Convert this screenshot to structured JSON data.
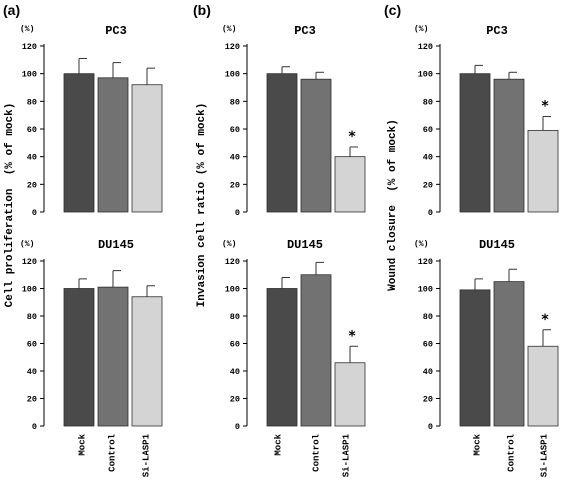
{
  "panels": [
    {
      "letter": "(a)",
      "ylabel": "Cell proliferation  (% of mock)",
      "charts": [
        {
          "title": "PC3",
          "unit": "(%)"
        },
        {
          "title": "DU145",
          "unit": "(%)"
        }
      ]
    },
    {
      "letter": "(b)",
      "ylabel": "Invasion cell ratio (% of mock)",
      "charts": [
        {
          "title": "PC3",
          "unit": "(%)"
        },
        {
          "title": "DU145",
          "unit": "(%)"
        }
      ]
    },
    {
      "letter": "(c)",
      "ylabel": "Wound closure  (% of mock)",
      "charts": [
        {
          "title": "PC3",
          "unit": "(%)"
        },
        {
          "title": "DU145",
          "unit": "(%)"
        }
      ]
    }
  ],
  "colors": {
    "Mock": "#4a4a4a",
    "Control": "#727272",
    "Si-LASP1": "#d4d4d4"
  },
  "chart_data": [
    {
      "panel": "(a)",
      "type": "bar",
      "title": "PC3",
      "ylabel": "Cell proliferation (% of mock)",
      "categories": [
        "Mock",
        "Control",
        "Si-LASP1"
      ],
      "values": [
        100,
        97,
        92
      ],
      "errors": [
        11,
        11,
        12
      ],
      "significant": [
        false,
        false,
        false
      ],
      "yticks": [
        0,
        20,
        40,
        60,
        80,
        100,
        120
      ],
      "ylim": [
        0,
        120
      ]
    },
    {
      "panel": "(a)",
      "type": "bar",
      "title": "DU145",
      "ylabel": "Cell proliferation (% of mock)",
      "categories": [
        "Mock",
        "Control",
        "Si-LASP1"
      ],
      "values": [
        100,
        101,
        94
      ],
      "errors": [
        7,
        12,
        8
      ],
      "significant": [
        false,
        false,
        false
      ],
      "yticks": [
        0,
        20,
        40,
        60,
        80,
        100,
        120
      ],
      "ylim": [
        0,
        120
      ]
    },
    {
      "panel": "(b)",
      "type": "bar",
      "title": "PC3",
      "ylabel": "Invasion cell ratio (% of mock)",
      "categories": [
        "Mock",
        "Control",
        "Si-LASP1"
      ],
      "values": [
        100,
        96,
        40
      ],
      "errors": [
        5,
        5,
        7
      ],
      "significant": [
        false,
        false,
        true
      ],
      "yticks": [
        0,
        20,
        40,
        60,
        80,
        100,
        120
      ],
      "ylim": [
        0,
        120
      ]
    },
    {
      "panel": "(b)",
      "type": "bar",
      "title": "DU145",
      "ylabel": "Invasion cell ratio (% of mock)",
      "categories": [
        "Mock",
        "Control",
        "Si-LASP1"
      ],
      "values": [
        100,
        110,
        46
      ],
      "errors": [
        8,
        9,
        12
      ],
      "significant": [
        false,
        false,
        true
      ],
      "yticks": [
        0,
        20,
        40,
        60,
        80,
        100,
        120
      ],
      "ylim": [
        0,
        120
      ]
    },
    {
      "panel": "(c)",
      "type": "bar",
      "title": "PC3",
      "ylabel": "Wound closure (% of mock)",
      "categories": [
        "Mock",
        "Control",
        "Si-LASP1"
      ],
      "values": [
        100,
        96,
        59
      ],
      "errors": [
        6,
        5,
        10
      ],
      "significant": [
        false,
        false,
        true
      ],
      "yticks": [
        0,
        20,
        40,
        60,
        80,
        100,
        120
      ],
      "ylim": [
        0,
        120
      ]
    },
    {
      "panel": "(c)",
      "type": "bar",
      "title": "DU145",
      "ylabel": "Wound closure (% of mock)",
      "categories": [
        "Mock",
        "Control",
        "Si-LASP1"
      ],
      "values": [
        99,
        105,
        58
      ],
      "errors": [
        8,
        9,
        12
      ],
      "significant": [
        false,
        false,
        true
      ],
      "yticks": [
        0,
        20,
        40,
        60,
        80,
        100,
        120
      ],
      "ylim": [
        0,
        120
      ]
    }
  ],
  "significance_marker": "*"
}
